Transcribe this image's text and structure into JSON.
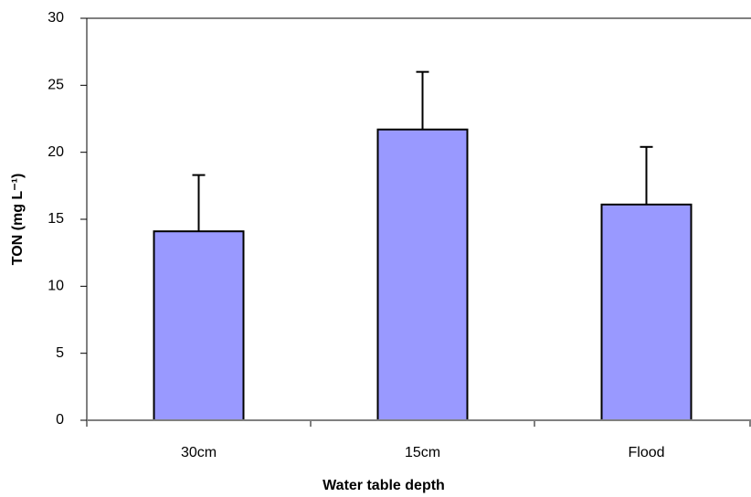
{
  "chart_data": {
    "type": "bar",
    "x_label": "Water table depth",
    "y_label": "TON (mg L⁻¹)",
    "categories": [
      "30cm",
      "15cm",
      "Flood"
    ],
    "values": [
      14.1,
      21.7,
      16.1
    ],
    "errors": [
      4.2,
      4.3,
      4.3
    ],
    "color": "#9999ff",
    "ylim": [
      0,
      30
    ],
    "yticks": [
      0,
      5,
      10,
      15,
      20,
      25,
      30
    ],
    "grid": false
  }
}
